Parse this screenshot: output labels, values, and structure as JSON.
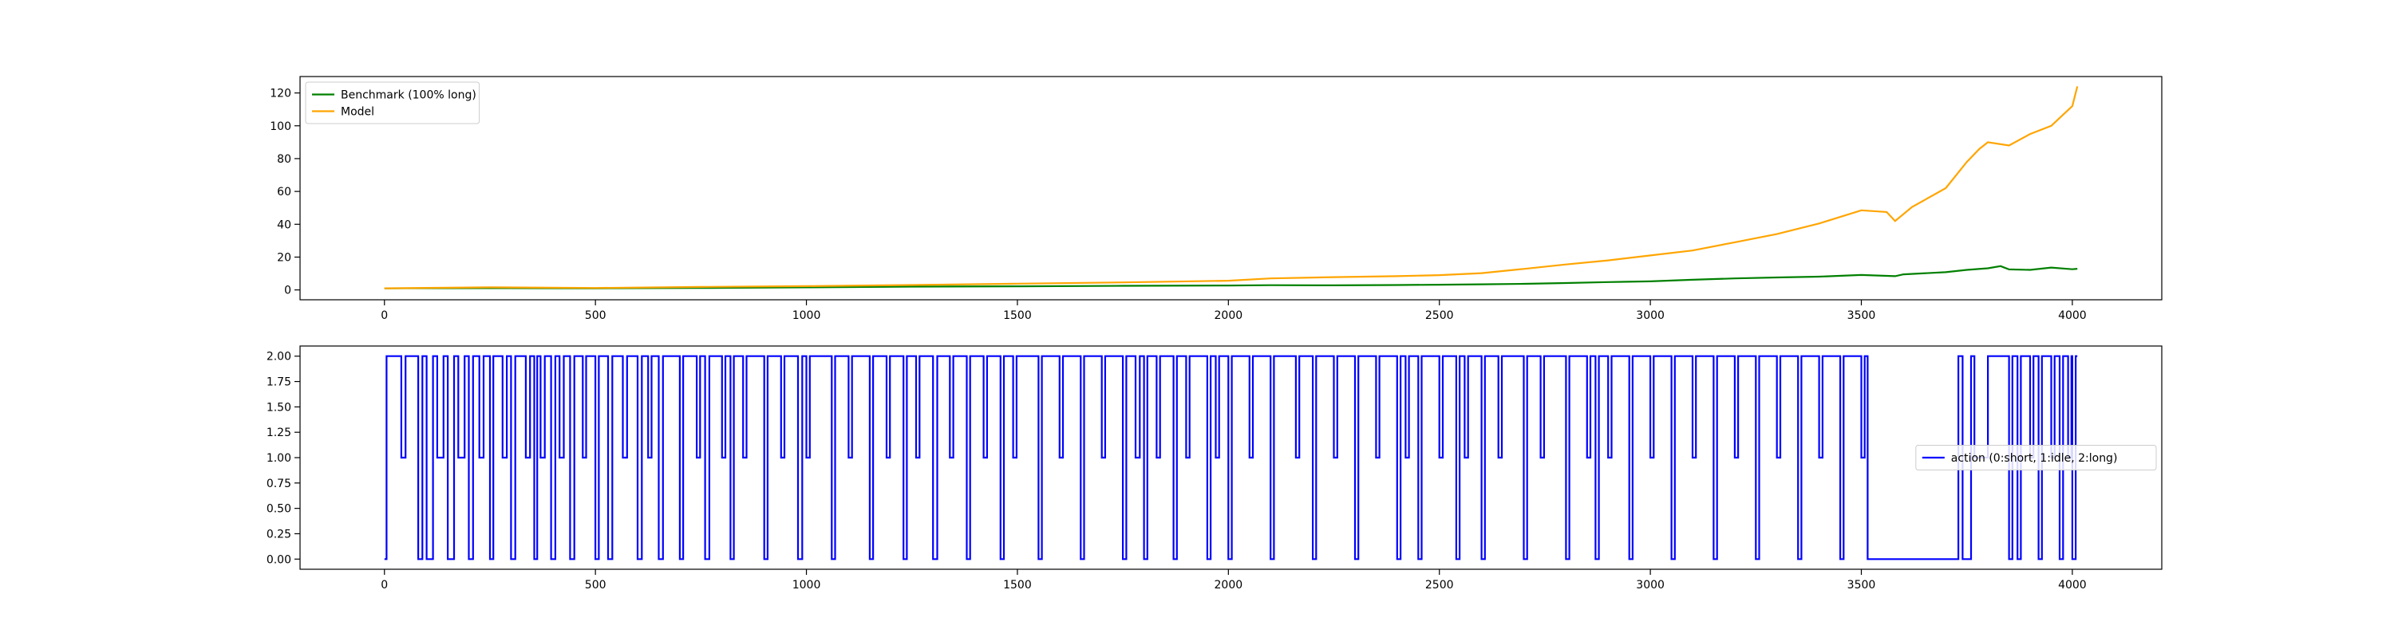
{
  "figure": {
    "background": "#ffffff"
  },
  "chart_data": [
    {
      "id": "equity",
      "type": "line",
      "title": "",
      "xlabel": "",
      "ylabel": "",
      "xlim": [
        -200,
        4212
      ],
      "ylim": [
        -6,
        130
      ],
      "xticks": [
        0,
        500,
        1000,
        1500,
        2000,
        2500,
        3000,
        3500,
        4000
      ],
      "yticks": [
        0,
        20,
        40,
        60,
        80,
        100,
        120
      ],
      "grid": false,
      "legend": {
        "position": "upper-left"
      },
      "series": [
        {
          "name": "Benchmark (100% long)",
          "color": "#008000",
          "x": [
            0,
            250,
            500,
            750,
            1000,
            1250,
            1500,
            1750,
            2000,
            2100,
            2250,
            2400,
            2500,
            2600,
            2700,
            2800,
            2900,
            3000,
            3100,
            3200,
            3300,
            3400,
            3500,
            3580,
            3600,
            3700,
            3750,
            3800,
            3830,
            3850,
            3900,
            3950,
            4000,
            4012
          ],
          "y": [
            1.0,
            1.1,
            1.0,
            1.2,
            1.6,
            2.0,
            2.2,
            2.5,
            2.7,
            2.9,
            2.8,
            3.0,
            3.2,
            3.4,
            3.7,
            4.2,
            4.8,
            5.2,
            6.2,
            7.0,
            7.6,
            8.1,
            9.1,
            8.4,
            9.5,
            10.8,
            12.2,
            13.2,
            14.5,
            12.5,
            12.2,
            13.6,
            12.6,
            12.9
          ]
        },
        {
          "name": "Model",
          "color": "#FFA500",
          "x": [
            0,
            250,
            500,
            750,
            1000,
            1250,
            1500,
            1750,
            2000,
            2100,
            2250,
            2400,
            2500,
            2600,
            2700,
            2800,
            2900,
            3000,
            3100,
            3200,
            3300,
            3400,
            3500,
            3560,
            3580,
            3620,
            3700,
            3750,
            3780,
            3800,
            3850,
            3900,
            3950,
            4000,
            4012
          ],
          "y": [
            1.0,
            1.6,
            1.2,
            1.8,
            2.3,
            3.0,
            3.8,
            4.6,
            5.6,
            7.0,
            7.8,
            8.4,
            9.0,
            10.2,
            12.8,
            15.5,
            18.0,
            21.0,
            24.0,
            29.0,
            34.0,
            40.5,
            48.5,
            47.5,
            42.0,
            50.5,
            62.0,
            78.0,
            86.0,
            90.0,
            88.0,
            95.0,
            100.0,
            112.0,
            124.0
          ]
        }
      ]
    },
    {
      "id": "actions",
      "type": "line",
      "step": true,
      "title": "",
      "xlabel": "",
      "ylabel": "",
      "xlim": [
        -200,
        4212
      ],
      "ylim": [
        -0.1,
        2.1
      ],
      "xticks": [
        0,
        500,
        1000,
        1500,
        2000,
        2500,
        3000,
        3500,
        4000
      ],
      "yticks": [
        0.0,
        0.25,
        0.5,
        0.75,
        1.0,
        1.25,
        1.5,
        1.75,
        2.0
      ],
      "grid": false,
      "legend": {
        "position": "center-right"
      },
      "series": [
        {
          "name": "action (0:short, 1:idle, 2:long)",
          "color": "#0000FF",
          "x": [
            0,
            5,
            40,
            50,
            80,
            90,
            100,
            115,
            125,
            140,
            150,
            165,
            175,
            190,
            200,
            210,
            225,
            235,
            250,
            258,
            280,
            290,
            300,
            310,
            335,
            345,
            355,
            362,
            370,
            380,
            395,
            405,
            415,
            425,
            440,
            450,
            470,
            478,
            500,
            508,
            530,
            540,
            565,
            575,
            600,
            610,
            625,
            633,
            650,
            660,
            700,
            708,
            740,
            748,
            760,
            770,
            800,
            808,
            820,
            828,
            850,
            858,
            900,
            908,
            940,
            948,
            980,
            990,
            1000,
            1008,
            1060,
            1068,
            1100,
            1108,
            1150,
            1158,
            1190,
            1198,
            1230,
            1238,
            1260,
            1268,
            1300,
            1310,
            1340,
            1348,
            1380,
            1388,
            1420,
            1428,
            1460,
            1468,
            1490,
            1498,
            1550,
            1558,
            1600,
            1608,
            1650,
            1658,
            1700,
            1708,
            1750,
            1758,
            1780,
            1790,
            1800,
            1808,
            1830,
            1838,
            1870,
            1878,
            1900,
            1908,
            1950,
            1958,
            1970,
            1978,
            2000,
            2008,
            2050,
            2058,
            2100,
            2108,
            2160,
            2168,
            2200,
            2208,
            2250,
            2258,
            2300,
            2308,
            2350,
            2358,
            2400,
            2408,
            2420,
            2428,
            2450,
            2458,
            2500,
            2508,
            2540,
            2548,
            2560,
            2568,
            2600,
            2608,
            2640,
            2648,
            2700,
            2708,
            2740,
            2748,
            2800,
            2808,
            2850,
            2858,
            2870,
            2878,
            2900,
            2908,
            2950,
            2958,
            3000,
            3008,
            3050,
            3058,
            3100,
            3108,
            3150,
            3158,
            3200,
            3208,
            3250,
            3258,
            3300,
            3308,
            3350,
            3358,
            3400,
            3408,
            3450,
            3458,
            3500,
            3508,
            3515,
            3730,
            3740,
            3760,
            3768,
            3800,
            3850,
            3858,
            3870,
            3878,
            3900,
            3908,
            3920,
            3928,
            3950,
            3958,
            3970,
            3978,
            3990,
            3998,
            4000,
            4008,
            4012
          ],
          "y": [
            0,
            2,
            1,
            2,
            0,
            2,
            0,
            2,
            1,
            2,
            0,
            2,
            1,
            2,
            0,
            2,
            1,
            2,
            0,
            2,
            1,
            2,
            0,
            2,
            1,
            2,
            0,
            2,
            1,
            2,
            0,
            2,
            1,
            2,
            0,
            2,
            1,
            2,
            0,
            2,
            0,
            2,
            1,
            2,
            0,
            2,
            1,
            2,
            0,
            2,
            0,
            2,
            1,
            2,
            0,
            2,
            1,
            2,
            0,
            2,
            1,
            2,
            0,
            2,
            1,
            2,
            0,
            2,
            1,
            2,
            0,
            2,
            1,
            2,
            0,
            2,
            1,
            2,
            0,
            2,
            1,
            2,
            0,
            2,
            1,
            2,
            0,
            2,
            1,
            2,
            0,
            2,
            1,
            2,
            0,
            2,
            1,
            2,
            0,
            2,
            1,
            2,
            0,
            2,
            1,
            2,
            0,
            2,
            1,
            2,
            0,
            2,
            1,
            2,
            0,
            2,
            1,
            2,
            0,
            2,
            1,
            2,
            0,
            2,
            1,
            2,
            0,
            2,
            1,
            2,
            0,
            2,
            1,
            2,
            0,
            2,
            1,
            2,
            0,
            2,
            1,
            2,
            0,
            2,
            1,
            2,
            0,
            2,
            1,
            2,
            0,
            2,
            1,
            2,
            0,
            2,
            1,
            2,
            0,
            2,
            1,
            2,
            0,
            2,
            1,
            2,
            0,
            2,
            1,
            2,
            0,
            2,
            1,
            2,
            0,
            2,
            1,
            2,
            0,
            2,
            1,
            2,
            0,
            2,
            1,
            2,
            0,
            2,
            0,
            2,
            1,
            2,
            0,
            2,
            0,
            2,
            1,
            2,
            0,
            2,
            1,
            2,
            0,
            2,
            1,
            2,
            0,
            2,
            2
          ]
        }
      ]
    }
  ]
}
